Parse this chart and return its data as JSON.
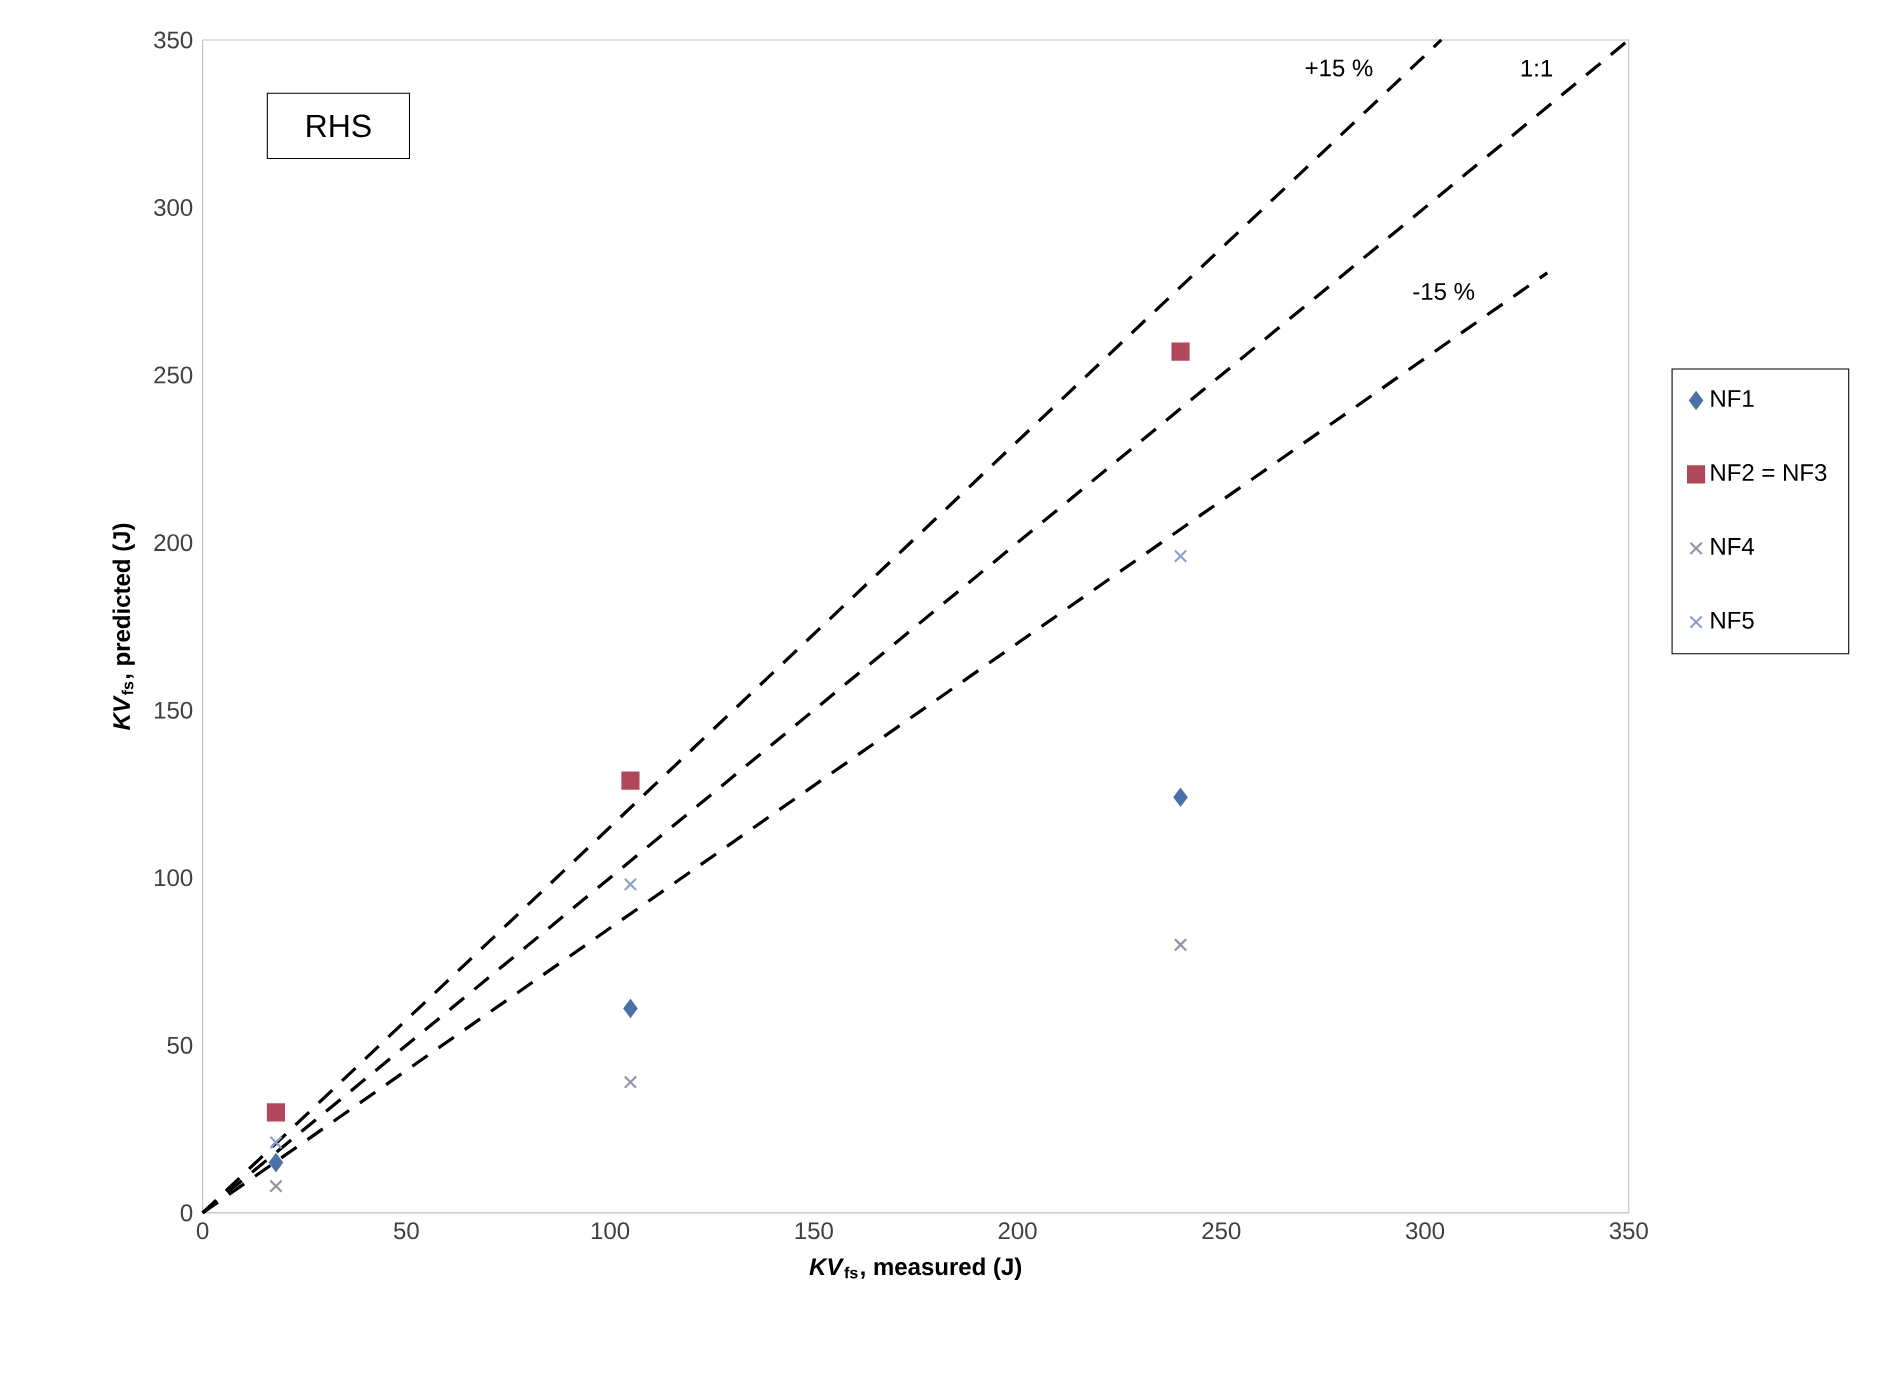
{
  "chart_data": {
    "type": "scatter",
    "xlabel": "*KV*$_{fs}$, measured (J)",
    "ylabel": "*KV*$_{fs}$, predicted (J)",
    "annotations": [
      "RHS"
    ],
    "xlim": [
      0,
      350
    ],
    "ylim": [
      0,
      350
    ],
    "xticks": [
      0,
      50,
      100,
      150,
      200,
      250,
      300,
      350
    ],
    "yticks": [
      0,
      50,
      100,
      150,
      200,
      250,
      300,
      350
    ],
    "grid": false,
    "legend": "right",
    "series": [
      {
        "name": "NF1",
        "color": "#4a72a8",
        "marker": "diamond",
        "x": [
          18,
          105,
          240
        ],
        "values": [
          15,
          61,
          124
        ]
      },
      {
        "name": "NF2 = NF3",
        "color": "#b0475a",
        "marker": "square",
        "x": [
          18,
          105,
          240
        ],
        "values": [
          30,
          129,
          257
        ]
      },
      {
        "name": "NF4",
        "color": "#9a90a8",
        "marker": "cross",
        "x": [
          18,
          105,
          240
        ],
        "values": [
          8,
          39,
          80
        ]
      },
      {
        "name": "NF5",
        "color": "#8fa0c8",
        "marker": "cross",
        "x": [
          18,
          105,
          240
        ],
        "values": [
          21,
          98,
          196
        ]
      },
      {
        "name": "+15 %",
        "type": "line",
        "color": "#000000",
        "line_style": "dashed",
        "marker": "none",
        "x": [
          0,
          304
        ],
        "values": [
          0,
          350
        ]
      },
      {
        "name": "1:1",
        "type": "line",
        "color": "#000000",
        "line_style": "dashed",
        "marker": "none",
        "x": [
          0,
          350
        ],
        "values": [
          0,
          350
        ]
      },
      {
        "name": "-15 %",
        "type": "line",
        "color": "#000000",
        "line_style": "dashed",
        "marker": "none",
        "x": [
          0,
          330
        ],
        "values": [
          0,
          280.5
        ]
      }
    ]
  }
}
